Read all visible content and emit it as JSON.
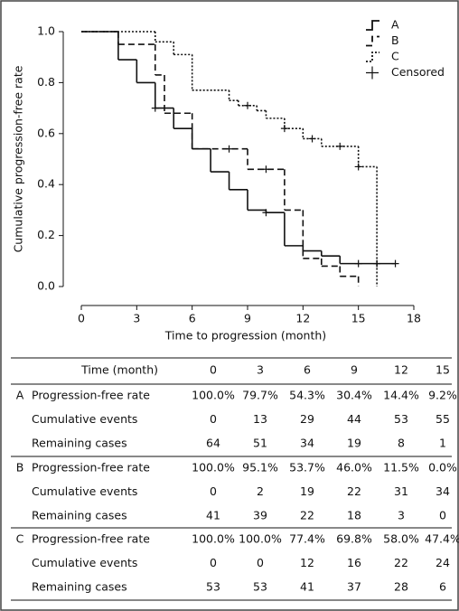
{
  "chart_data": {
    "type": "step",
    "ylabel": "Cumulative progression-free rate",
    "xlabel": "Time to progression (month)",
    "xlim": [
      0,
      18
    ],
    "xticks": [
      0,
      3,
      6,
      9,
      12,
      15,
      18
    ],
    "ylim": [
      0,
      1
    ],
    "yticks": [
      {
        "value": 0,
        "label": "0.0"
      },
      {
        "value": 0.2,
        "label": "0.2"
      },
      {
        "value": 0.4,
        "label": "0.4"
      },
      {
        "value": 0.6,
        "label": "0.6"
      },
      {
        "value": 0.8,
        "label": "0.8"
      },
      {
        "value": 1,
        "label": "1.0"
      }
    ],
    "legend": "upper right",
    "censored_label": "Censored",
    "series": [
      {
        "name": "A",
        "color": "#111111",
        "linestyle": "solid",
        "x": [
          0,
          2,
          3,
          4,
          5,
          6,
          7,
          8,
          9,
          10,
          11,
          12,
          13,
          14,
          17
        ],
        "values": [
          1.0,
          0.89,
          0.8,
          0.7,
          0.62,
          0.54,
          0.45,
          0.38,
          0.3,
          0.29,
          0.16,
          0.14,
          0.12,
          0.09,
          0.09
        ],
        "censored": [
          4,
          10,
          15,
          16,
          17
        ]
      },
      {
        "name": "B",
        "color": "#111111",
        "linestyle": "dashed",
        "x": [
          0,
          2,
          4,
          4.5,
          6,
          9,
          11,
          12,
          13,
          14,
          15
        ],
        "values": [
          1.0,
          0.95,
          0.83,
          0.68,
          0.54,
          0.46,
          0.3,
          0.11,
          0.08,
          0.04,
          0.0
        ],
        "censored": [
          8,
          10
        ]
      },
      {
        "name": "C",
        "color": "#111111",
        "linestyle": "dotted",
        "x": [
          0,
          4,
          5,
          6,
          8,
          8.5,
          9.5,
          10,
          11,
          12,
          13,
          15,
          16
        ],
        "values": [
          1.0,
          0.96,
          0.91,
          0.77,
          0.73,
          0.71,
          0.69,
          0.66,
          0.62,
          0.58,
          0.55,
          0.47,
          0.0
        ],
        "censored": [
          9,
          11,
          12.5,
          14,
          15
        ]
      }
    ]
  },
  "table": {
    "header": [
      "Time (month)",
      "0",
      "3",
      "6",
      "9",
      "12",
      "15"
    ],
    "groups": [
      {
        "label": "A",
        "rows": [
          {
            "label": "Progression-free rate",
            "cells": [
              "100.0%",
              "79.7%",
              "54.3%",
              "30.4%",
              "14.4%",
              "9.2%"
            ]
          },
          {
            "label": "Cumulative events",
            "cells": [
              "0",
              "13",
              "29",
              "44",
              "53",
              "55"
            ]
          },
          {
            "label": "Remaining cases",
            "cells": [
              "64",
              "51",
              "34",
              "19",
              "8",
              "1"
            ]
          }
        ]
      },
      {
        "label": "B",
        "rows": [
          {
            "label": "Progression-free rate",
            "cells": [
              "100.0%",
              "95.1%",
              "53.7%",
              "46.0%",
              "11.5%",
              "0.0%"
            ]
          },
          {
            "label": "Cumulative events",
            "cells": [
              "0",
              "2",
              "19",
              "22",
              "31",
              "34"
            ]
          },
          {
            "label": "Remaining cases",
            "cells": [
              "41",
              "39",
              "22",
              "18",
              "3",
              "0"
            ]
          }
        ]
      },
      {
        "label": "C",
        "rows": [
          {
            "label": "Progression-free rate",
            "cells": [
              "100.0%",
              "100.0%",
              "77.4%",
              "69.8%",
              "58.0%",
              "47.4%"
            ]
          },
          {
            "label": "Cumulative events",
            "cells": [
              "0",
              "0",
              "12",
              "16",
              "22",
              "24"
            ]
          },
          {
            "label": "Remaining cases",
            "cells": [
              "53",
              "53",
              "41",
              "37",
              "28",
              "6"
            ]
          }
        ]
      }
    ]
  }
}
